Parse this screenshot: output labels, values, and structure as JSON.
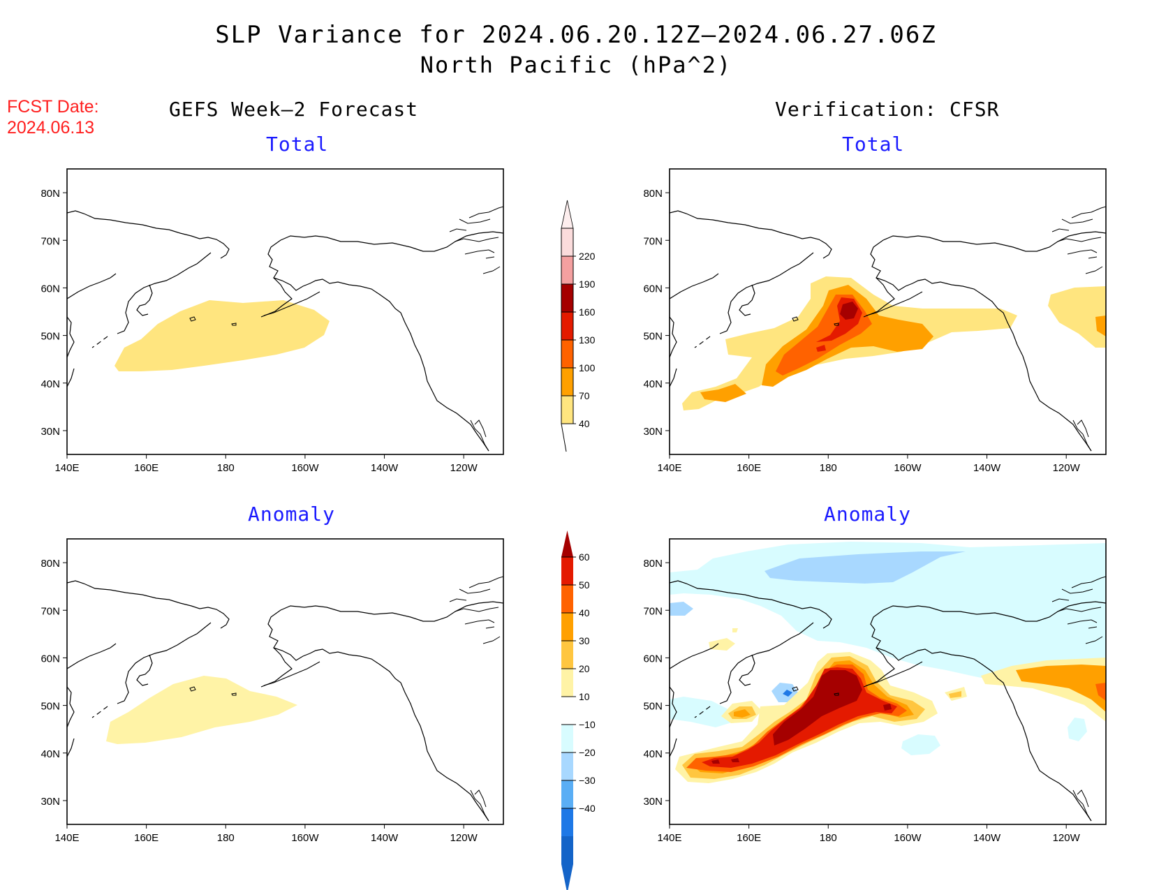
{
  "title": {
    "line1": "SLP Variance for 2024.06.20.12Z–2024.06.27.06Z",
    "line2": "North Pacific (hPa^2)"
  },
  "fcst_date": {
    "label": "FCST Date:",
    "value": "2024.06.13"
  },
  "columns": {
    "left": "GEFS Week–2 Forecast",
    "right": "Verification: CFSR"
  },
  "panel_titles": {
    "total": "Total",
    "anomaly": "Anomaly"
  },
  "map_axes": {
    "lon_ticks": [
      "140E",
      "160E",
      "180",
      "160W",
      "140W",
      "120W"
    ],
    "lat_ticks": [
      "80N",
      "70N",
      "60N",
      "50N",
      "40N",
      "30N"
    ],
    "lon_range_deg_east": [
      140,
      250
    ],
    "lat_range": [
      25,
      85
    ]
  },
  "colorbars": {
    "total": {
      "levels": [
        "40",
        "70",
        "100",
        "130",
        "160",
        "190",
        "220"
      ],
      "colors": [
        "#ffe57f",
        "#ffa000",
        "#ff6200",
        "#e41a00",
        "#a50000",
        "#f4a0a0",
        "#fbdcdc"
      ]
    },
    "anomaly": {
      "levels": [
        "60",
        "50",
        "40",
        "30",
        "20",
        "10",
        "−10",
        "−20",
        "−30",
        "−40"
      ],
      "pos_colors": [
        "#fff3a6",
        "#ffc640",
        "#ffa000",
        "#ff6200",
        "#e41a00",
        "#a50000"
      ],
      "neg_colors": [
        "#d8fcff",
        "#a8d8ff",
        "#5aaef5",
        "#1e78e6",
        "#1464c8"
      ]
    }
  },
  "colors": {
    "title_blue": "#1a1aff",
    "fcst_red": "#ff1e1e"
  }
}
